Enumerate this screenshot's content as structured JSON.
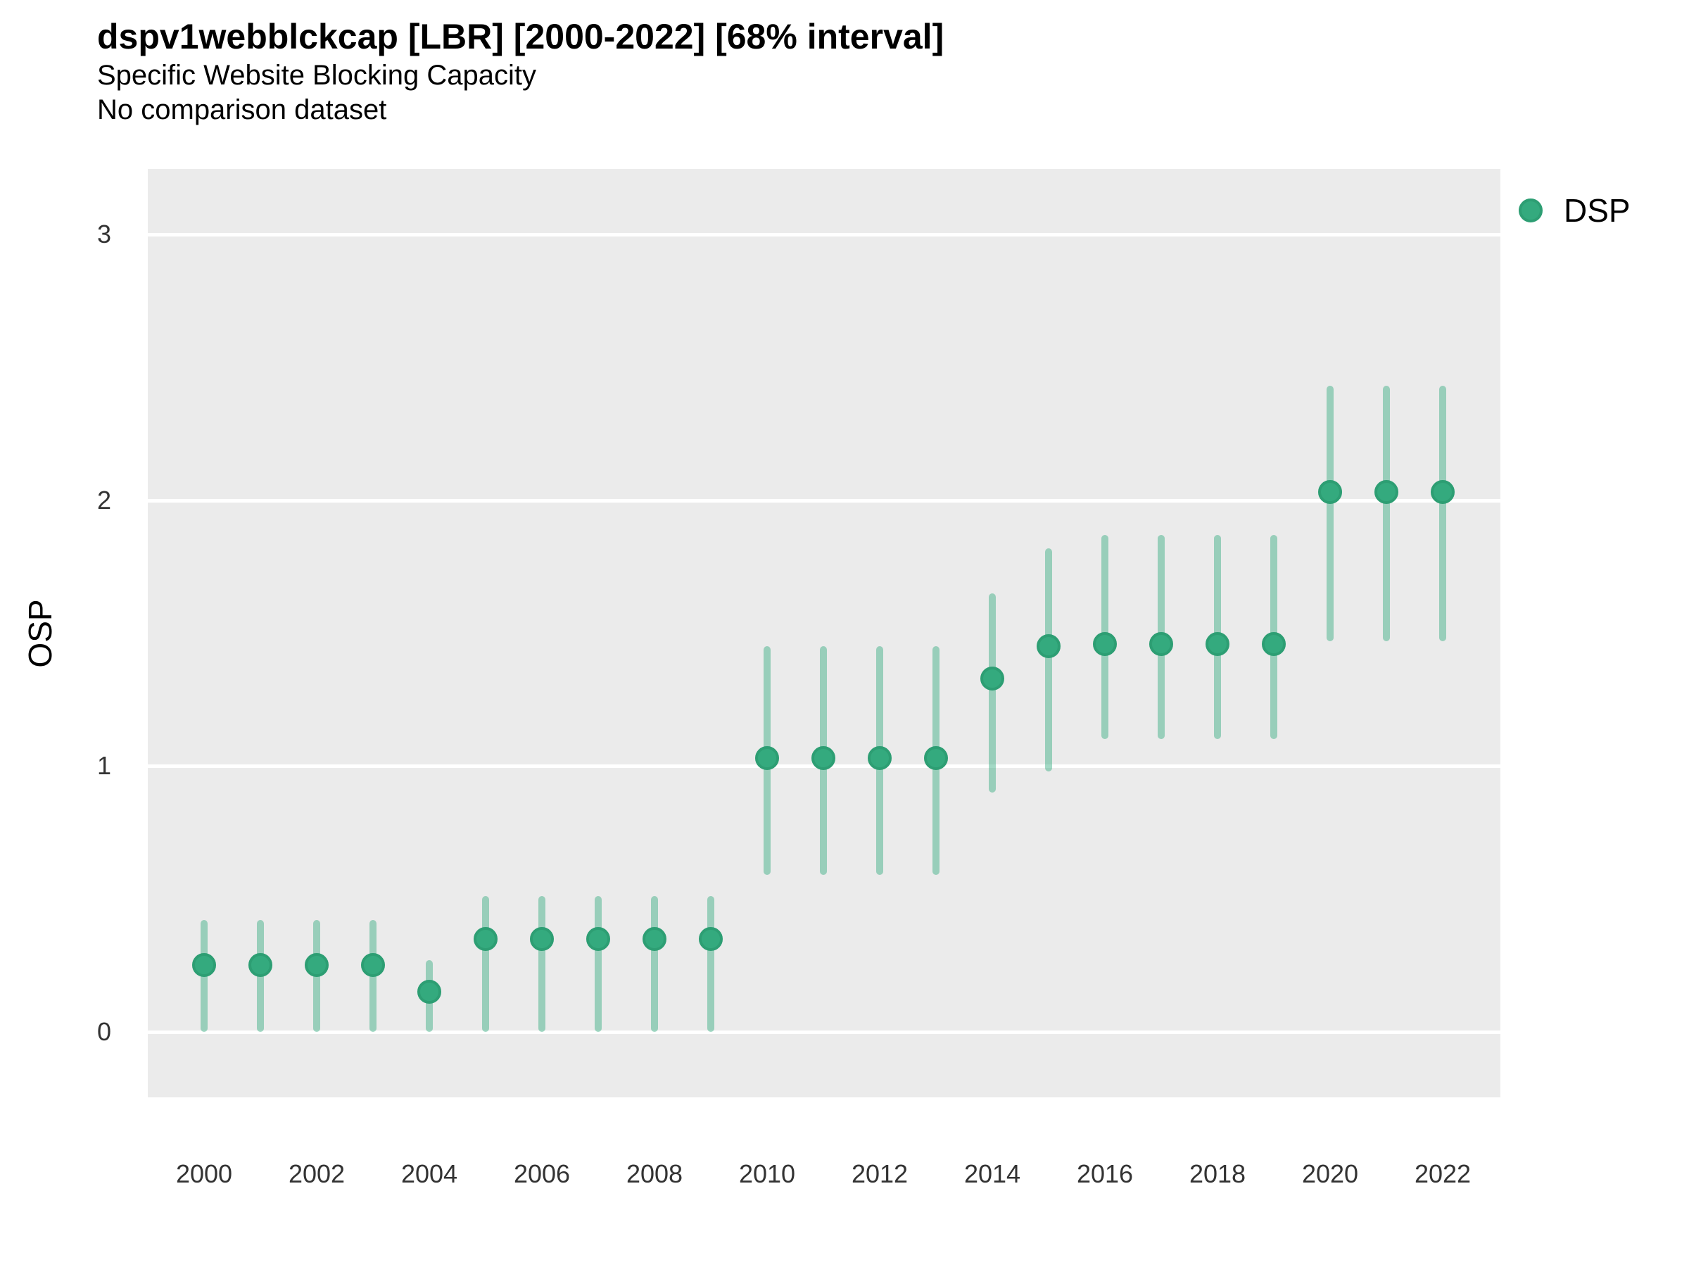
{
  "header": {
    "title": "dspv1webblckcap [LBR] [2000-2022] [68% interval]",
    "subtitle": "Specific Website Blocking Capacity",
    "note": "No comparison dataset"
  },
  "chart_data": {
    "type": "scatter",
    "title": "dspv1webblckcap [LBR] [2000-2022] [68% interval]",
    "subtitle": "Specific Website Blocking Capacity",
    "note": "No comparison dataset",
    "interval": "68%",
    "xlabel": "",
    "ylabel": "OSP",
    "x": [
      2000,
      2001,
      2002,
      2003,
      2004,
      2005,
      2006,
      2007,
      2008,
      2009,
      2010,
      2011,
      2012,
      2013,
      2014,
      2015,
      2016,
      2017,
      2018,
      2019,
      2020,
      2021,
      2022
    ],
    "x_tick_labels": [
      "2000",
      "2002",
      "2004",
      "2006",
      "2008",
      "2010",
      "2012",
      "2014",
      "2016",
      "2018",
      "2020",
      "2022"
    ],
    "y_ticks": [
      0,
      1,
      2,
      3
    ],
    "ylim": [
      -0.247,
      3.247
    ],
    "grid": "horizontal-white-on-gray",
    "legend_position": "right-top",
    "series": [
      {
        "name": "DSP",
        "values": [
          0.25,
          0.25,
          0.25,
          0.25,
          0.15,
          0.35,
          0.35,
          0.35,
          0.35,
          0.35,
          1.03,
          1.03,
          1.03,
          1.03,
          1.33,
          1.45,
          1.46,
          1.46,
          1.46,
          1.46,
          2.03,
          2.03,
          2.03
        ],
        "lower": [
          0.0,
          0.0,
          0.0,
          0.0,
          0.0,
          0.0,
          0.0,
          0.0,
          0.0,
          0.0,
          0.59,
          0.59,
          0.59,
          0.59,
          0.9,
          0.98,
          1.1,
          1.1,
          1.1,
          1.1,
          1.47,
          1.47,
          1.47
        ],
        "upper": [
          0.42,
          0.42,
          0.42,
          0.42,
          0.27,
          0.51,
          0.51,
          0.51,
          0.51,
          0.51,
          1.45,
          1.45,
          1.45,
          1.45,
          1.65,
          1.82,
          1.87,
          1.87,
          1.87,
          1.87,
          2.43,
          2.43,
          2.43
        ]
      }
    ],
    "colors": {
      "point_fill": "#34aa7e",
      "point_ring": "#2d9e73",
      "interval_line": "#34aa7e",
      "interval_opacity": 0.45,
      "panel_bg": "#ebebeb",
      "gridline": "#ffffff",
      "title_text": "#000000",
      "tick_text": "#333333"
    }
  }
}
